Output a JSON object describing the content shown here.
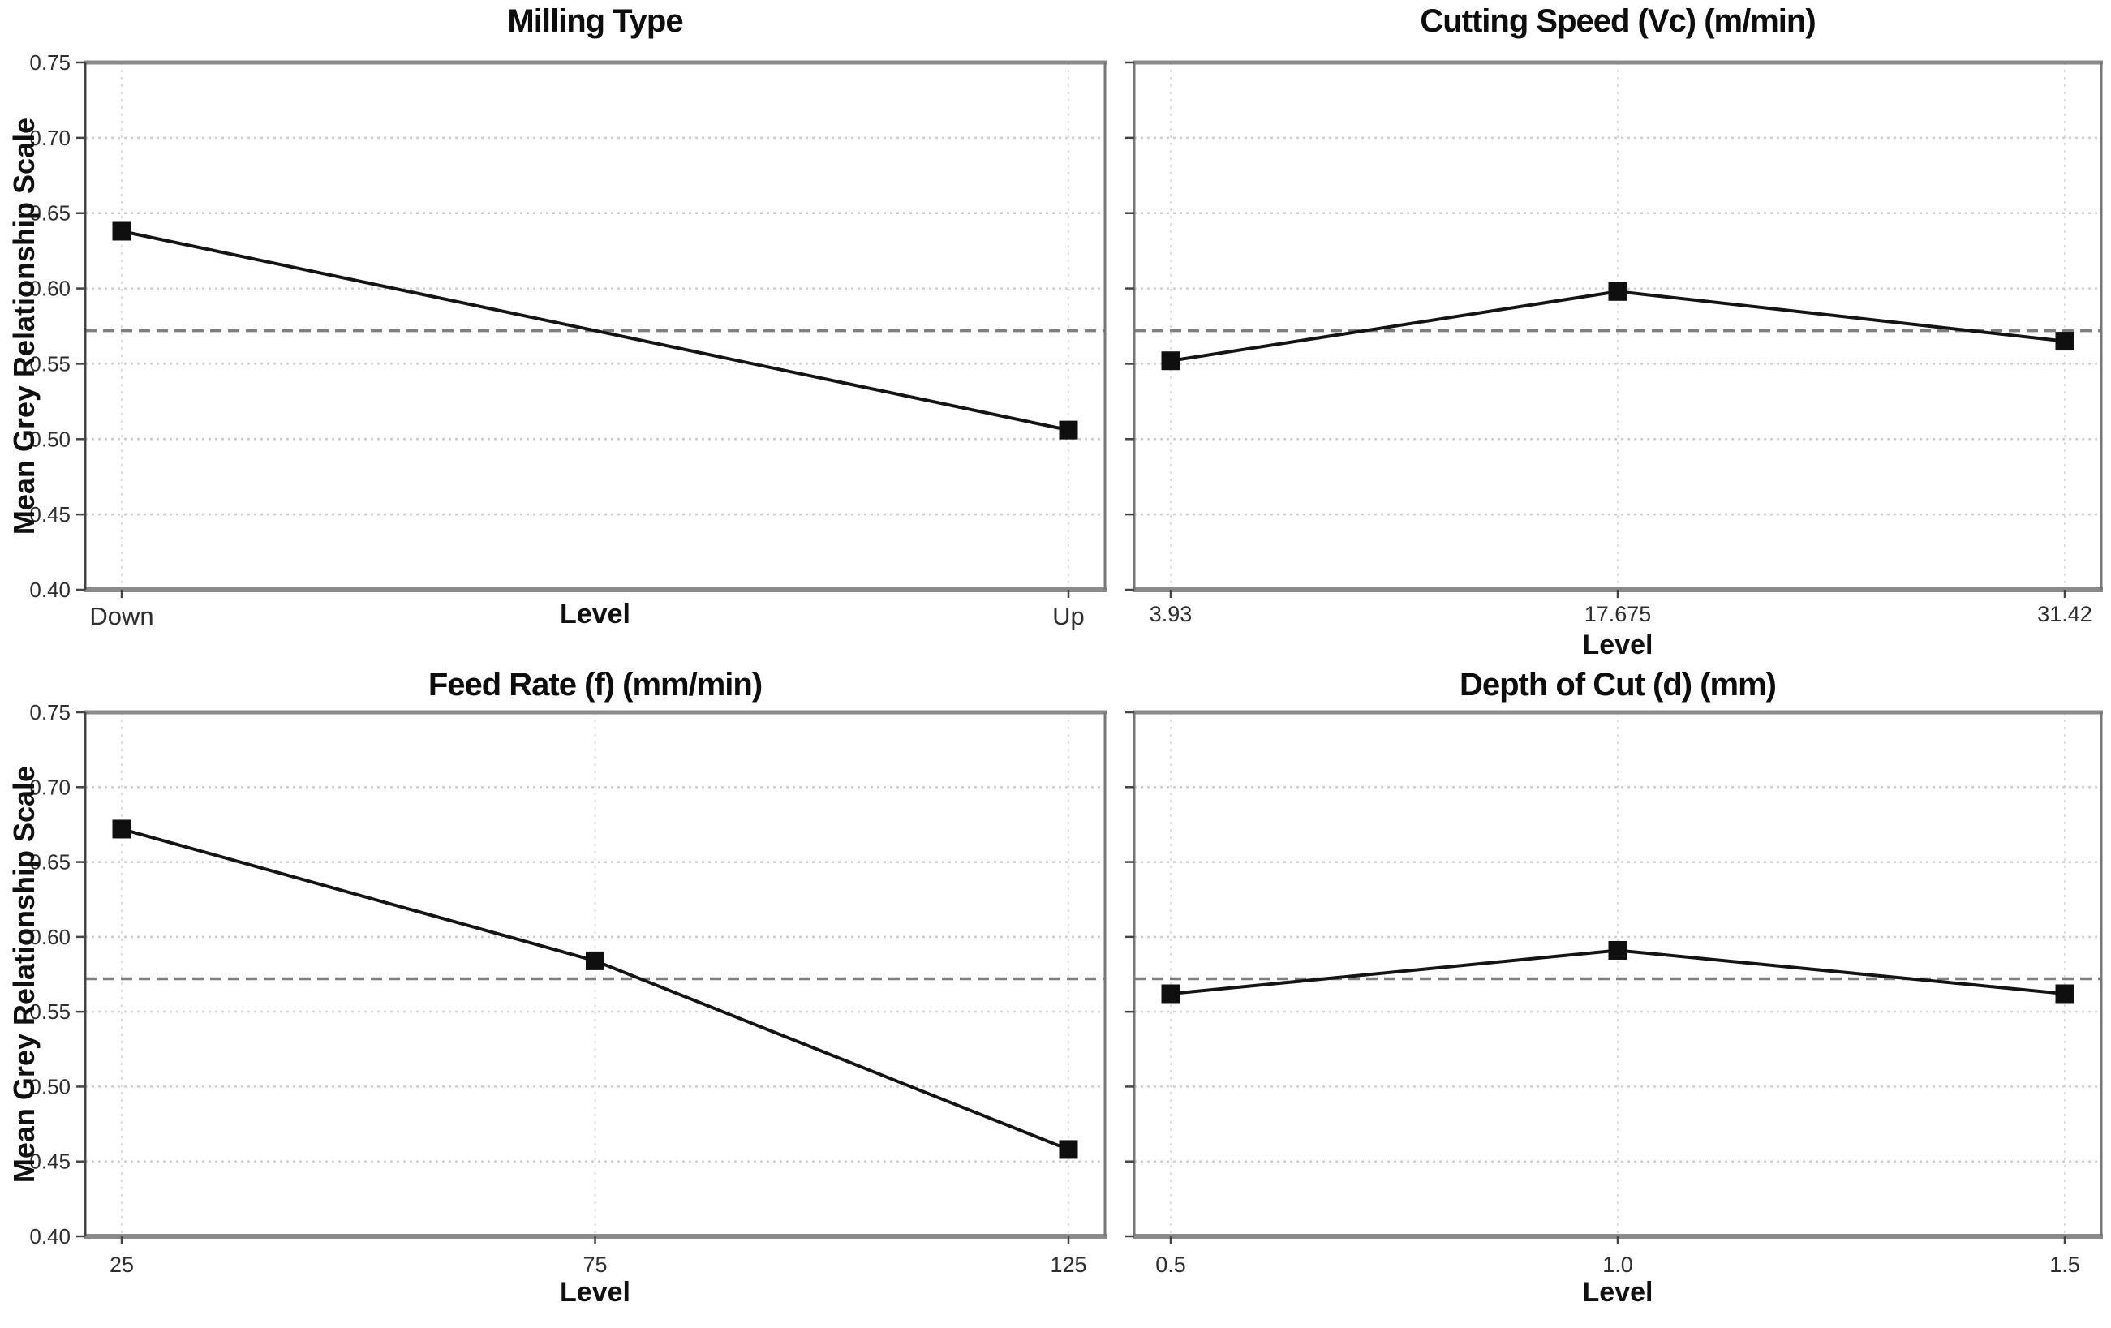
{
  "figure": {
    "ylabel": "Mean Grey Relationship Scale",
    "xlabel": "Level"
  },
  "style": {
    "line_color": "#141414",
    "marker_color": "#0f0f0f",
    "mean_line_color": "#7f7f7f",
    "h_grid_color": "#cfcfcf",
    "v_grid_color": "#dedede",
    "spine_h_color": "#8a8a8a",
    "spine_v_color": "#777777",
    "left_spine_color": "#444444",
    "tick_mark_color": "#444444"
  },
  "chart_data": [
    {
      "type": "line",
      "title": "Milling Type",
      "xlabel": "Level",
      "xlabel_inline": true,
      "categories": [
        "Down",
        "Up"
      ],
      "values": [
        0.638,
        0.506
      ],
      "mean_line": 0.572,
      "ylim": [
        0.4,
        0.75
      ],
      "yticks": [
        0.4,
        0.45,
        0.5,
        0.55,
        0.6,
        0.65,
        0.7,
        0.75
      ],
      "ytick_labels_visible": true,
      "grid": true,
      "legend": "none",
      "marker": "black-square"
    },
    {
      "type": "line",
      "title": "Cutting Speed (Vc) (m/min)",
      "xlabel": "Level",
      "xlabel_inline": false,
      "categories": [
        "3.93",
        "17.675",
        "31.42"
      ],
      "values": [
        0.552,
        0.598,
        0.565
      ],
      "mean_line": 0.572,
      "ylim": [
        0.4,
        0.75
      ],
      "yticks": [
        0.4,
        0.45,
        0.5,
        0.55,
        0.6,
        0.65,
        0.7,
        0.75
      ],
      "ytick_labels_visible": false,
      "grid": true,
      "legend": "none",
      "marker": "black-square"
    },
    {
      "type": "line",
      "title": "Feed Rate (f) (mm/min)",
      "xlabel": "Level",
      "xlabel_inline": false,
      "categories": [
        "25",
        "75",
        "125"
      ],
      "values": [
        0.672,
        0.584,
        0.458
      ],
      "mean_line": 0.572,
      "ylim": [
        0.4,
        0.75
      ],
      "yticks": [
        0.4,
        0.45,
        0.5,
        0.55,
        0.6,
        0.65,
        0.7,
        0.75
      ],
      "ytick_labels_visible": true,
      "grid": true,
      "legend": "none",
      "marker": "black-square"
    },
    {
      "type": "line",
      "title": "Depth of Cut (d) (mm)",
      "xlabel": "Level",
      "xlabel_inline": false,
      "categories": [
        "0.5",
        "1.0",
        "1.5"
      ],
      "values": [
        0.562,
        0.591,
        0.562
      ],
      "mean_line": 0.572,
      "ylim": [
        0.4,
        0.75
      ],
      "yticks": [
        0.4,
        0.45,
        0.5,
        0.55,
        0.6,
        0.65,
        0.7,
        0.75
      ],
      "ytick_labels_visible": false,
      "grid": true,
      "legend": "none",
      "marker": "black-square"
    }
  ]
}
